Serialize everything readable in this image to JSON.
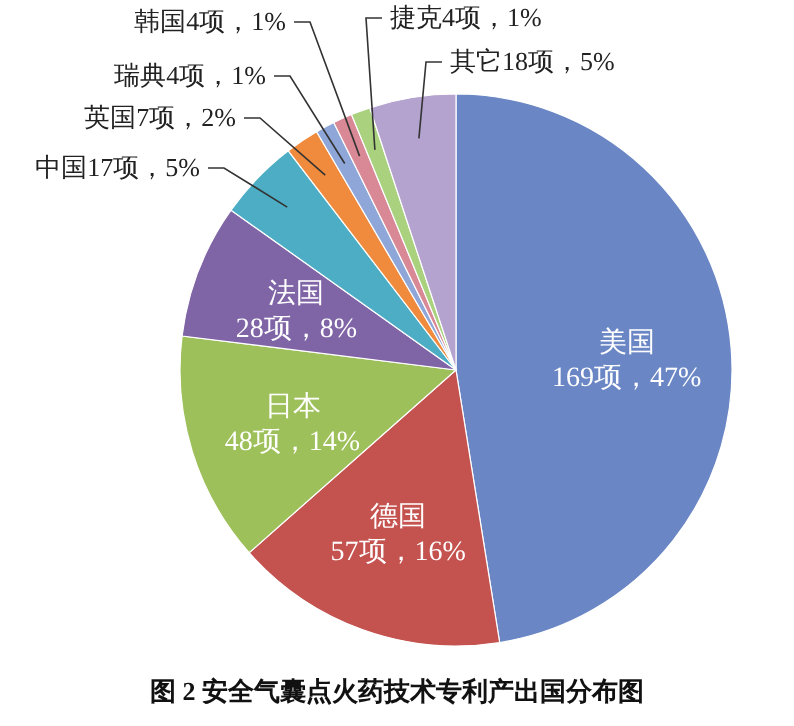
{
  "chart_data": {
    "type": "pie",
    "title": "图 2  安全气囊点火药技术专利产出国分布图",
    "categories": [
      "美国",
      "德国",
      "日本",
      "法国",
      "中国",
      "英国",
      "瑞典",
      "韩国",
      "捷克",
      "其它"
    ],
    "values": [
      169,
      57,
      48,
      28,
      17,
      7,
      4,
      4,
      4,
      18
    ],
    "colors": [
      "#6a86c4",
      "#c4524f",
      "#9dc05a",
      "#7f64a6",
      "#4cadc4",
      "#f08a3c",
      "#8fa6d8",
      "#d98896",
      "#a9d17e",
      "#b5a3cf"
    ],
    "value_labels": [
      "169项，47%",
      "57项，16%",
      "48项，14%",
      "28项，8%",
      "17项，5%",
      "7项，2%",
      "4项，1%",
      "4项，1%",
      "4项，1%",
      "18项，5%"
    ]
  }
}
